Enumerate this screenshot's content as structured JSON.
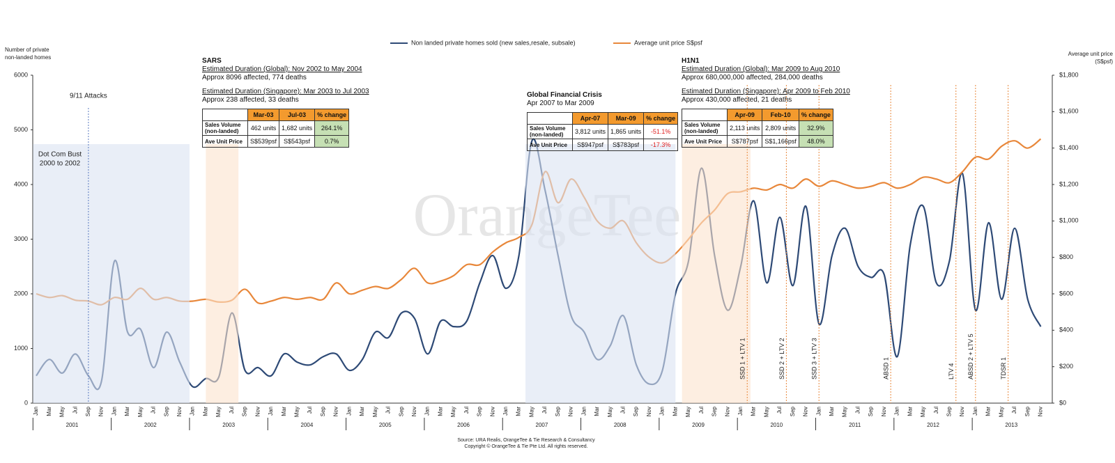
{
  "chart_data": {
    "type": "line",
    "legend": "top",
    "y_axis_title": [
      "Number of private",
      "non-landed homes"
    ],
    "y2_axis_title": [
      "Average unit price",
      "(S$psf)"
    ],
    "categories": [
      "Jan",
      "Mar",
      "May",
      "Jul",
      "Sep",
      "Nov",
      "Jan",
      "Mar",
      "May",
      "Jul",
      "Sep",
      "Nov",
      "Jan",
      "Mar",
      "May",
      "Jul",
      "Sep",
      "Nov",
      "Jan",
      "Mar",
      "May",
      "Jul",
      "Sep",
      "Nov",
      "Jan",
      "Mar",
      "May",
      "Jul",
      "Sep",
      "Nov",
      "Jan",
      "Mar",
      "May",
      "Jul",
      "Sep",
      "Nov",
      "Jan",
      "Mar",
      "May",
      "Jul",
      "Sep",
      "Nov",
      "Jan",
      "Mar",
      "May",
      "Jul",
      "Sep",
      "Nov",
      "Jan",
      "Mar",
      "May",
      "Jul",
      "Sep",
      "Nov",
      "Jan",
      "Mar",
      "May",
      "Jul",
      "Sep",
      "Nov",
      "Jan",
      "Mar",
      "May",
      "Jul",
      "Sep",
      "Nov",
      "Jan",
      "Mar",
      "May",
      "Jul",
      "Sep",
      "Nov",
      "Jan",
      "Mar",
      "May",
      "Jul",
      "Sep",
      "Nov"
    ],
    "years": [
      "2001",
      "2002",
      "2003",
      "2004",
      "2005",
      "2006",
      "2007",
      "2008",
      "2009",
      "2010",
      "2011",
      "2012",
      "2013"
    ],
    "series": [
      {
        "name": "Non landed private homes sold (new sales,resale, subsale)",
        "color": "#2e4a76",
        "values": [
          500,
          800,
          550,
          900,
          500,
          400,
          2600,
          1300,
          1350,
          650,
          1300,
          750,
          300,
          450,
          480,
          1650,
          600,
          650,
          500,
          900,
          750,
          700,
          850,
          900,
          600,
          800,
          1300,
          1200,
          1650,
          1550,
          900,
          1500,
          1400,
          1500,
          2200,
          2700,
          2100,
          2700,
          4800,
          3900,
          2700,
          1600,
          1300,
          800,
          1050,
          1600,
          700,
          350,
          600,
          2000,
          2600,
          4300,
          2700,
          1700,
          2500,
          3700,
          2200,
          3400,
          2150,
          3600,
          1450,
          2700,
          3200,
          2500,
          2300,
          2350,
          850,
          2900,
          3600,
          2200,
          2600,
          4200,
          1700,
          3300,
          1900,
          3200,
          1900,
          1400
        ]
      },
      {
        "name": "Average unit price S$psf",
        "color": "#e8873a",
        "axis": "y2",
        "values": [
          600,
          580,
          590,
          565,
          560,
          540,
          580,
          570,
          630,
          570,
          580,
          560,
          560,
          570,
          555,
          565,
          625,
          550,
          560,
          580,
          570,
          580,
          570,
          660,
          600,
          620,
          640,
          630,
          680,
          740,
          660,
          670,
          700,
          760,
          760,
          830,
          880,
          910,
          980,
          1270,
          1100,
          1230,
          1130,
          1000,
          960,
          1000,
          880,
          800,
          770,
          820,
          900,
          990,
          1060,
          1150,
          1160,
          1180,
          1170,
          1200,
          1180,
          1230,
          1190,
          1220,
          1200,
          1180,
          1190,
          1210,
          1180,
          1200,
          1240,
          1230,
          1210,
          1270,
          1350,
          1340,
          1410,
          1440,
          1400,
          1450
        ]
      }
    ],
    "ylim": [
      0,
      6000
    ],
    "yticks": [
      0,
      1000,
      2000,
      3000,
      4000,
      5000,
      6000
    ],
    "y2lim": [
      0,
      1800
    ],
    "y2ticks": [
      {
        "value": 0,
        "label": "$0"
      },
      {
        "value": 200,
        "label": "$200"
      },
      {
        "value": 400,
        "label": "$400"
      },
      {
        "value": 600,
        "label": "$600"
      },
      {
        "value": 800,
        "label": "$800"
      },
      {
        "value": 1000,
        "label": "$1,000"
      },
      {
        "value": 1200,
        "label": "$1,200"
      },
      {
        "value": 1400,
        "label": "$1,400"
      },
      {
        "value": 1600,
        "label": "$1,600"
      },
      {
        "value": 1800,
        "label": "$1,800"
      }
    ],
    "events": [
      "9/11 Attacks",
      "SSD 1 + LTV 1",
      "SSD 2 + LTV 2",
      "SSD 3 + LTV 3",
      "ABSD 1",
      "LTV 4",
      "ABSD 2 + LTV 5",
      "TDSR 1"
    ],
    "dot_com": [
      "Dot Com Bust",
      "2000 to 2002"
    ],
    "watermark": "OrangeTee",
    "boxes": [
      {
        "title": "SARS",
        "lines": [
          "Estimated Duration (Global): Nov 2002 to May 2004",
          "Approx 8096 affected, 774 deaths",
          "Estimated Duration (Singapore): Mar 2003 to Jul 2003",
          "Approx 238 affected, 33 deaths"
        ],
        "header": [
          "Mar-03",
          "Jul-03",
          "% change"
        ],
        "highlight": "fill",
        "rows": [
          [
            "Sales Volume (non-landed)",
            "462 units",
            "1,682 units",
            "264.1%"
          ],
          [
            "Ave Unit Price",
            "S$539psf",
            "S$543psf",
            "0.7%"
          ]
        ]
      },
      {
        "title": "Global Financial Crisis",
        "lines": [
          "Apr 2007 to Mar 2009"
        ],
        "header": [
          "Apr-07",
          "Mar-09",
          "% change"
        ],
        "highlight": "text",
        "rows": [
          [
            "Sales Volume (non-landed)",
            "3,812 units",
            "1,865 units",
            "-51.1%"
          ],
          [
            "Ave Unit Price",
            "S$947psf",
            "S$783psf",
            "-17.3%"
          ]
        ]
      },
      {
        "title": "H1N1",
        "lines": [
          "Estimated Duration (Global): Mar 2009 to Aug 2010",
          "Approx 680,000,000 affected, 284,000 deaths",
          "Estimated Duration (Singapore): Apr 2009 to Feb 2010",
          "Approx 430,000 affected, 21 deaths"
        ],
        "header": [
          "Apr-09",
          "Feb-10",
          "% change"
        ],
        "highlight": "fill",
        "rows": [
          [
            "Sales Volume (non-landed)",
            "2,113 units",
            "2,809 units",
            "32.9%"
          ],
          [
            "Ave Unit Price",
            "S$787psf",
            "S$1,166psf",
            "48.0%"
          ]
        ]
      }
    ],
    "source": [
      "Source: URA Realis, OrangeTee & Tie Research & Consultancy",
      "Copyright © OrangeTee & Tie Pte Ltd. All rights reserved."
    ]
  }
}
